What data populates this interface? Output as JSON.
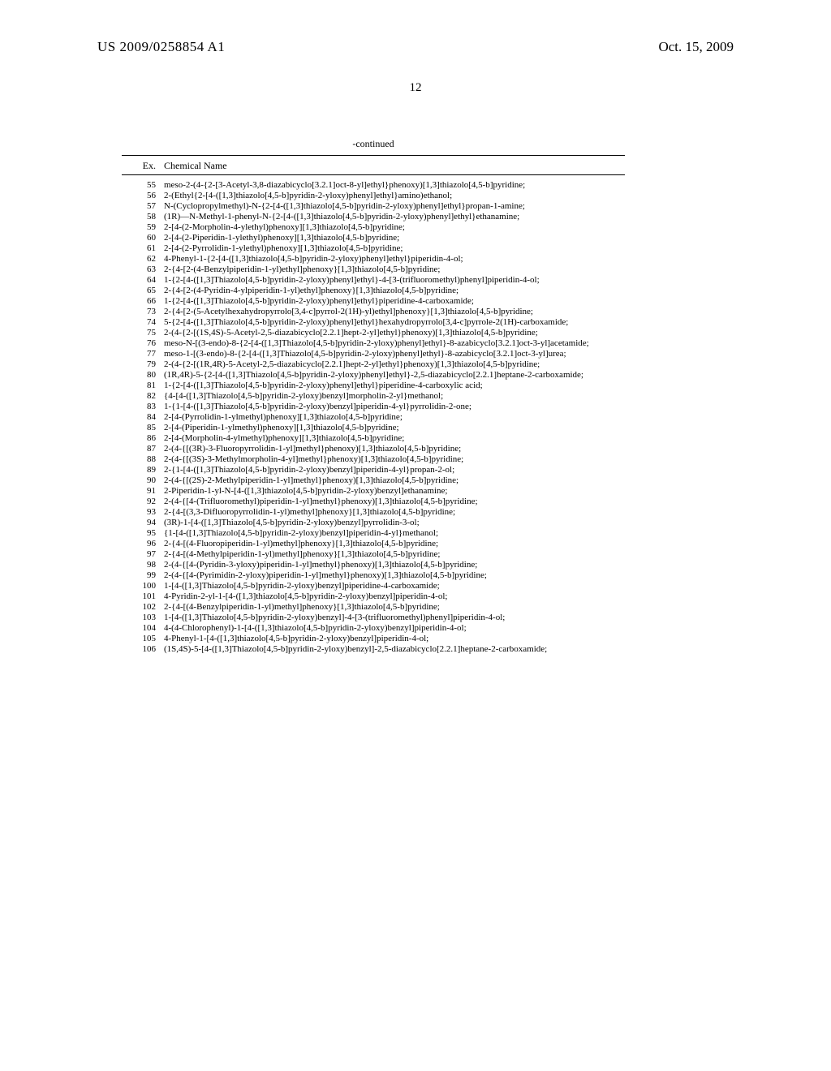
{
  "header": {
    "patent_id": "US 2009/0258854 A1",
    "date": "Oct. 15, 2009",
    "page_number": "12"
  },
  "table": {
    "continued_label": "-continued",
    "columns": {
      "ex": "Ex.",
      "name": "Chemical Name"
    },
    "rows": [
      {
        "ex": "55",
        "name": "meso-2-(4-{2-[3-Acetyl-3,8-diazabicyclo[3.2.1]oct-8-yl]ethyl}phenoxy)[1,3]thiazolo[4,5-b]pyridine;"
      },
      {
        "ex": "56",
        "name": "2-(Ethyl{2-[4-([1,3]thiazolo[4,5-b]pyridin-2-yloxy)phenyl]ethyl}amino)ethanol;"
      },
      {
        "ex": "57",
        "name": "N-(Cyclopropylmethyl)-N-{2-[4-([1,3]thiazolo[4,5-b]pyridin-2-yloxy)phenyl]ethyl}propan-1-amine;"
      },
      {
        "ex": "58",
        "name": "(1R)—N-Methyl-1-phenyl-N-{2-[4-([1,3]thiazolo[4,5-b]pyridin-2-yloxy)phenyl]ethyl}ethanamine;"
      },
      {
        "ex": "59",
        "name": "2-[4-(2-Morpholin-4-ylethyl)phenoxy][1,3]thiazolo[4,5-b]pyridine;"
      },
      {
        "ex": "60",
        "name": "2-[4-(2-Piperidin-1-ylethyl)phenoxy][1,3]thiazolo[4,5-b]pyridine;"
      },
      {
        "ex": "61",
        "name": "2-[4-(2-Pyrrolidin-1-ylethyl)phenoxy][1,3]thiazolo[4,5-b]pyridine;"
      },
      {
        "ex": "62",
        "name": "4-Phenyl-1-{2-[4-([1,3]thiazolo[4,5-b]pyridin-2-yloxy)phenyl]ethyl}piperidin-4-ol;"
      },
      {
        "ex": "63",
        "name": "2-{4-[2-(4-Benzylpiperidin-1-yl)ethyl]phenoxy}[1,3]thiazolo[4,5-b]pyridine;"
      },
      {
        "ex": "64",
        "name": "1-{2-[4-([1,3]Thiazolo[4,5-b]pyridin-2-yloxy)phenyl]ethyl}-4-[3-(trifluoromethyl)phenyl]piperidin-4-ol;"
      },
      {
        "ex": "65",
        "name": "2-{4-[2-(4-Pyridin-4-ylpiperidin-1-yl)ethyl]phenoxy}[1,3]thiazolo[4,5-b]pyridine;"
      },
      {
        "ex": "66",
        "name": "1-{2-[4-([1,3]Thiazolo[4,5-b]pyridin-2-yloxy)phenyl]ethyl}piperidine-4-carboxamide;"
      },
      {
        "ex": "73",
        "name": "2-{4-[2-(5-Acetylhexahydropyrrolo[3,4-c]pyrrol-2(1H)-yl)ethyl]phenoxy}[1,3]thiazolo[4,5-b]pyridine;"
      },
      {
        "ex": "74",
        "name": "5-{2-[4-([1,3]Thiazolo[4,5-b]pyridin-2-yloxy)phenyl]ethyl}hexahydropyrrolo[3,4-c]pyrrole-2(1H)-carboxamide;"
      },
      {
        "ex": "75",
        "name": "2-(4-{2-[(1S,4S)-5-Acetyl-2,5-diazabicyclo[2.2.1]hept-2-yl]ethyl}phenoxy)[1,3]thiazolo[4,5-b]pyridine;"
      },
      {
        "ex": "76",
        "name": "meso-N-[(3-endo)-8-{2-[4-([1,3]Thiazolo[4,5-b]pyridin-2-yloxy)phenyl]ethyl}-8-azabicyclo[3.2.1]oct-3-yl]acetamide;"
      },
      {
        "ex": "77",
        "name": "meso-1-[(3-endo)-8-{2-[4-([1,3]Thiazolo[4,5-b]pyridin-2-yloxy)phenyl]ethyl}-8-azabicyclo[3.2.1]oct-3-yl]urea;"
      },
      {
        "ex": "79",
        "name": "2-(4-{2-[(1R,4R)-5-Acetyl-2,5-diazabicyclo[2.2.1]hept-2-yl]ethyl}phenoxy)[1,3]thiazolo[4,5-b]pyridine;"
      },
      {
        "ex": "80",
        "name": "(1R,4R)-5-{2-[4-([1,3]Thiazolo[4,5-b]pyridin-2-yloxy)phenyl]ethyl}-2,5-diazabicyclo[2.2.1]heptane-2-carboxamide;"
      },
      {
        "ex": "81",
        "name": "1-{2-[4-([1,3]Thiazolo[4,5-b]pyridin-2-yloxy)phenyl]ethyl}piperidine-4-carboxylic acid;"
      },
      {
        "ex": "82",
        "name": "{4-[4-([1,3]Thiazolo[4,5-b]pyridin-2-yloxy)benzyl]morpholin-2-yl}methanol;"
      },
      {
        "ex": "83",
        "name": "1-{1-[4-([1,3]Thiazolo[4,5-b]pyridin-2-yloxy)benzyl]piperidin-4-yl}pyrrolidin-2-one;"
      },
      {
        "ex": "84",
        "name": "2-[4-(Pyrrolidin-1-ylmethyl)phenoxy][1,3]thiazolo[4,5-b]pyridine;"
      },
      {
        "ex": "85",
        "name": "2-[4-(Piperidin-1-ylmethyl)phenoxy][1,3]thiazolo[4,5-b]pyridine;"
      },
      {
        "ex": "86",
        "name": "2-[4-(Morpholin-4-ylmethyl)phenoxy][1,3]thiazolo[4,5-b]pyridine;"
      },
      {
        "ex": "87",
        "name": "2-(4-{[(3R)-3-Fluoropyrrolidin-1-yl]methyl}phenoxy)[1,3]thiazolo[4,5-b]pyridine;"
      },
      {
        "ex": "88",
        "name": "2-(4-{[(3S)-3-Methylmorpholin-4-yl]methyl}phenoxy)[1,3]thiazolo[4,5-b]pyridine;"
      },
      {
        "ex": "89",
        "name": "2-{1-[4-([1,3]Thiazolo[4,5-b]pyridin-2-yloxy)benzyl]piperidin-4-yl}propan-2-ol;"
      },
      {
        "ex": "90",
        "name": "2-(4-{[(2S)-2-Methylpiperidin-1-yl]methyl}phenoxy)[1,3]thiazolo[4,5-b]pyridine;"
      },
      {
        "ex": "91",
        "name": "2-Piperidin-1-yl-N-[4-([1,3]thiazolo[4,5-b]pyridin-2-yloxy)benzyl]ethanamine;"
      },
      {
        "ex": "92",
        "name": "2-(4-{[4-(Trifluoromethyl)piperidin-1-yl]methyl}phenoxy)[1,3]thiazolo[4,5-b]pyridine;"
      },
      {
        "ex": "93",
        "name": "2-{4-[(3,3-Difluoropyrrolidin-1-yl)methyl]phenoxy}[1,3]thiazolo[4,5-b]pyridine;"
      },
      {
        "ex": "94",
        "name": "(3R)-1-[4-([1,3]Thiazolo[4,5-b]pyridin-2-yloxy)benzyl]pyrrolidin-3-ol;"
      },
      {
        "ex": "95",
        "name": "{1-[4-([1,3]Thiazolo[4,5-b]pyridin-2-yloxy)benzyl]piperidin-4-yl}methanol;"
      },
      {
        "ex": "96",
        "name": "2-{4-[(4-Fluoropiperidin-1-yl)methyl]phenoxy}[1,3]thiazolo[4,5-b]pyridine;"
      },
      {
        "ex": "97",
        "name": "2-{4-[(4-Methylpiperidin-1-yl)methyl]phenoxy}[1,3]thiazolo[4,5-b]pyridine;"
      },
      {
        "ex": "98",
        "name": "2-(4-{[4-(Pyridin-3-yloxy)piperidin-1-yl]methyl}phenoxy)[1,3]thiazolo[4,5-b]pyridine;"
      },
      {
        "ex": "99",
        "name": "2-(4-{[4-(Pyrimidin-2-yloxy)piperidin-1-yl]methyl}phenoxy)[1,3]thiazolo[4,5-b]pyridine;"
      },
      {
        "ex": "100",
        "name": "1-[4-([1,3]Thiazolo[4,5-b]pyridin-2-yloxy)benzyl]piperidine-4-carboxamide;"
      },
      {
        "ex": "101",
        "name": "4-Pyridin-2-yl-1-[4-([1,3]thiazolo[4,5-b]pyridin-2-yloxy)benzyl]piperidin-4-ol;"
      },
      {
        "ex": "102",
        "name": "2-{4-[(4-Benzylpiperidin-1-yl)methyl]phenoxy}[1,3]thiazolo[4,5-b]pyridine;"
      },
      {
        "ex": "103",
        "name": "1-[4-([1,3]Thiazolo[4,5-b]pyridin-2-yloxy)benzyl]-4-[3-(trifluoromethyl)phenyl]piperidin-4-ol;"
      },
      {
        "ex": "104",
        "name": "4-(4-Chlorophenyl)-1-[4-([1,3]thiazolo[4,5-b]pyridin-2-yloxy)benzyl]piperidin-4-ol;"
      },
      {
        "ex": "105",
        "name": "4-Phenyl-1-[4-([1,3]thiazolo[4,5-b]pyridin-2-yloxy)benzyl]piperidin-4-ol;"
      },
      {
        "ex": "106",
        "name": "(1S,4S)-5-[4-([1,3]Thiazolo[4,5-b]pyridin-2-yloxy)benzyl]-2,5-diazabicyclo[2.2.1]heptane-2-carboxamide;"
      }
    ]
  }
}
